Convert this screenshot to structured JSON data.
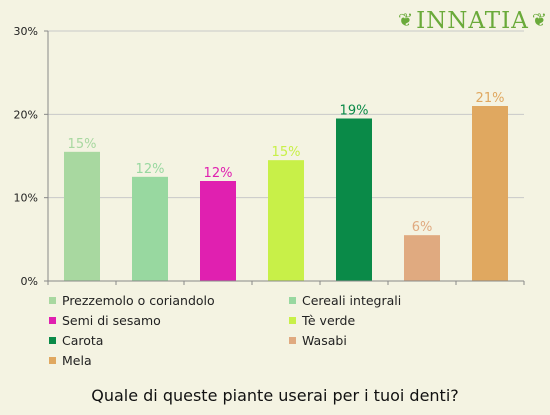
{
  "brand": {
    "name": "INNATIA",
    "color": "#6aaa3a"
  },
  "question": "Quale di queste piante userai per i tuoi denti?",
  "chart_data": {
    "type": "bar",
    "title": "",
    "xlabel": "",
    "ylabel": "",
    "ylim": [
      0,
      30
    ],
    "yticks": [
      "0%",
      "10%",
      "20%",
      "30%"
    ],
    "grid": "horizontal",
    "legend_position": "bottom",
    "categories": [
      "Prezzemolo o coriandolo",
      "Cereali integrali",
      "Semi di sesamo",
      "Tè verde",
      "Carota",
      "Wasabi",
      "Mela"
    ],
    "values": [
      15.5,
      12.5,
      12,
      14.5,
      19.5,
      5.5,
      21
    ],
    "data_labels": [
      "15%",
      "12%",
      "12%",
      "15%",
      "19%",
      "6%",
      "21%"
    ],
    "colors": [
      "#a8d8a0",
      "#98d8a0",
      "#e020b0",
      "#c8f048",
      "#0a8a48",
      "#e0aa80",
      "#e0a860"
    ],
    "label_colors": [
      "#a8d8a0",
      "#98d8a0",
      "#e020b0",
      "#c8f048",
      "#0a8a48",
      "#e0aa80",
      "#e0a860"
    ]
  }
}
